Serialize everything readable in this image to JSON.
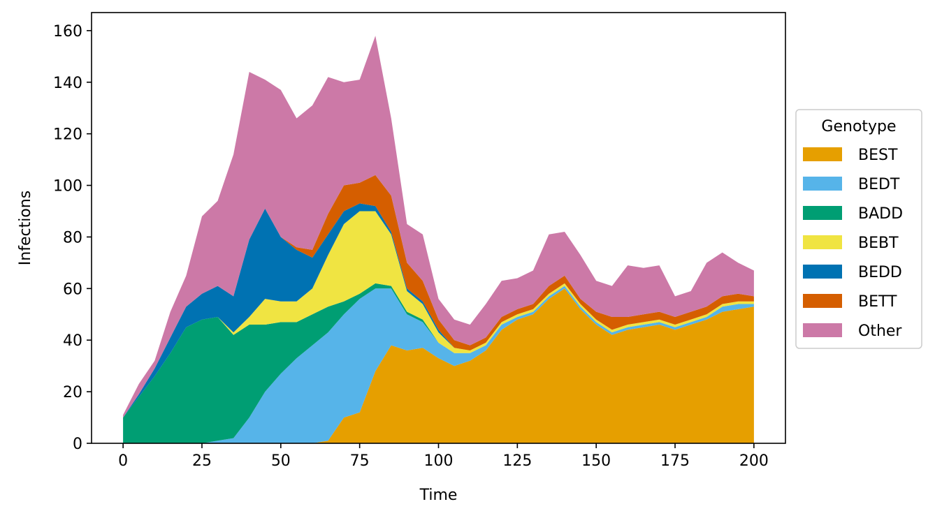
{
  "chart_data": {
    "type": "area",
    "stacked": true,
    "xlabel": "Time",
    "ylabel": "Infections",
    "xlim": [
      -10,
      210
    ],
    "ylim": [
      0,
      167
    ],
    "xticks": [
      0,
      25,
      50,
      75,
      100,
      125,
      150,
      175,
      200
    ],
    "yticks": [
      0,
      20,
      40,
      60,
      80,
      100,
      120,
      140,
      160
    ],
    "grid": false,
    "legend": {
      "title": "Genotype",
      "placement": "outside-right"
    },
    "x": [
      0,
      5,
      10,
      15,
      20,
      25,
      30,
      35,
      40,
      45,
      50,
      55,
      60,
      65,
      70,
      75,
      80,
      85,
      90,
      95,
      100,
      105,
      110,
      115,
      120,
      125,
      130,
      135,
      140,
      145,
      150,
      155,
      160,
      165,
      170,
      175,
      180,
      185,
      190,
      195,
      200
    ],
    "series": [
      {
        "name": "BEST",
        "color": "#E69F00",
        "values": [
          0,
          0,
          0,
          0,
          0,
          0,
          0,
          0,
          0,
          0,
          0,
          0,
          0,
          1,
          10,
          12,
          28,
          38,
          36,
          37,
          33,
          30,
          32,
          36,
          44,
          48,
          50,
          56,
          60,
          52,
          46,
          42,
          44,
          45,
          46,
          44,
          46,
          48,
          51,
          52,
          53
        ]
      },
      {
        "name": "BEDT",
        "color": "#56B4E9",
        "values": [
          0,
          0,
          0,
          0,
          0,
          0,
          1,
          2,
          10,
          20,
          27,
          33,
          38,
          42,
          40,
          44,
          32,
          22,
          14,
          10,
          6,
          5,
          3,
          2,
          2,
          1,
          1,
          1,
          1,
          1,
          1,
          1,
          1,
          1,
          1,
          1,
          1,
          1,
          2,
          2,
          1
        ]
      },
      {
        "name": "BADD",
        "color": "#009E73",
        "values": [
          10,
          18,
          26,
          35,
          45,
          48,
          48,
          40,
          36,
          26,
          20,
          14,
          12,
          10,
          5,
          2,
          2,
          1,
          1,
          1,
          0,
          0,
          0,
          0,
          0,
          0,
          0,
          0,
          0,
          0,
          0,
          0,
          0,
          0,
          0,
          0,
          0,
          0,
          0,
          0,
          0
        ]
      },
      {
        "name": "BEBT",
        "color": "#F0E442",
        "values": [
          0,
          0,
          0,
          0,
          0,
          0,
          0,
          1,
          3,
          10,
          8,
          8,
          10,
          20,
          30,
          32,
          28,
          20,
          8,
          6,
          4,
          2,
          1,
          1,
          1,
          1,
          1,
          1,
          1,
          1,
          1,
          1,
          1,
          1,
          1,
          1,
          1,
          1,
          1,
          1,
          1
        ]
      },
      {
        "name": "BEDD",
        "color": "#0072B2",
        "values": [
          0,
          1,
          3,
          6,
          8,
          10,
          12,
          14,
          30,
          35,
          25,
          20,
          12,
          8,
          5,
          3,
          2,
          1,
          1,
          1,
          1,
          0,
          0,
          0,
          0,
          0,
          0,
          0,
          0,
          0,
          0,
          0,
          0,
          0,
          0,
          0,
          0,
          0,
          0,
          0,
          0
        ]
      },
      {
        "name": "BETT",
        "color": "#D55E00",
        "values": [
          0,
          0,
          0,
          0,
          0,
          0,
          0,
          0,
          0,
          0,
          0,
          1,
          3,
          8,
          10,
          8,
          12,
          14,
          10,
          8,
          4,
          3,
          2,
          2,
          2,
          2,
          2,
          3,
          3,
          2,
          3,
          5,
          3,
          3,
          3,
          3,
          3,
          3,
          3,
          3,
          2
        ]
      },
      {
        "name": "Other",
        "color": "#CC79A7",
        "values": [
          1,
          4,
          3,
          10,
          12,
          30,
          33,
          55,
          65,
          50,
          57,
          50,
          56,
          53,
          40,
          40,
          54,
          30,
          15,
          18,
          8,
          8,
          8,
          13,
          14,
          12,
          13,
          20,
          17,
          17,
          12,
          12,
          20,
          18,
          18,
          8,
          8,
          17,
          17,
          12,
          10
        ]
      }
    ]
  }
}
